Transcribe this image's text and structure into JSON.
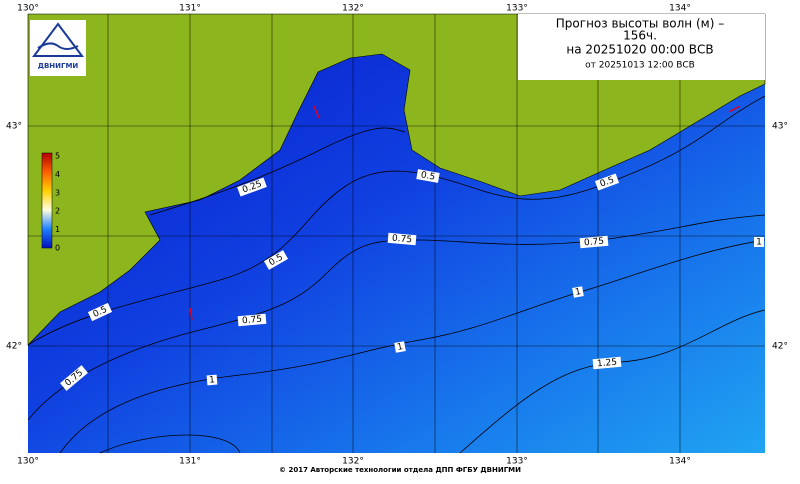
{
  "title": {
    "lines": [
      "Прогноз высоты волн (м) –",
      "156ч.",
      "на 20251020 00:00 ВСВ",
      "от 20251013 12:00 ВСВ"
    ]
  },
  "logo": {
    "text": "ДВНИГМИ"
  },
  "axes": {
    "longitude_top": [
      "130°",
      "131°",
      "132°",
      "133°",
      "134°"
    ],
    "longitude_bottom": [
      "130°",
      "131°",
      "132°",
      "133°",
      "134°"
    ],
    "latitude_left": [
      "43°",
      "42°"
    ],
    "latitude_right": [
      "43°",
      "42°"
    ]
  },
  "colorbar": {
    "labels": [
      "5",
      "4",
      "3",
      "2",
      "1",
      "0"
    ]
  },
  "contour_labels": [
    "0.25",
    "0.5",
    "0.5",
    "0.5",
    "0.5",
    "0.75",
    "0.75",
    "0.75",
    "0.75",
    "1",
    "1",
    "1",
    "1",
    "1.25"
  ],
  "footer": "© 2017 Авторские технологии отдела ДПП ФГБУ ДВНИГМИ"
}
